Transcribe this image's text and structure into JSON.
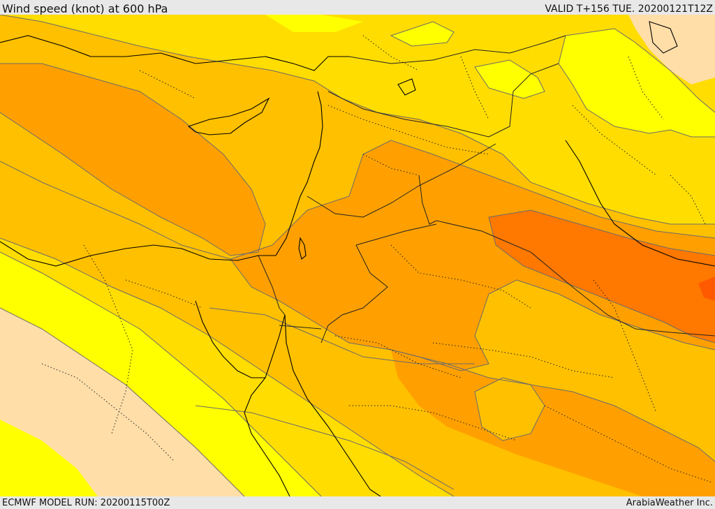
{
  "header": {
    "title": "Wind speed (knot) at 600 hPa",
    "valid": "VALID T+156 TUE. 20200121T12Z"
  },
  "footer": {
    "model_run": "ECMWF MODEL RUN: 20200115T00Z",
    "provider": "ArabiaWeather Inc."
  },
  "map": {
    "palette": {
      "band_lightest": "#ffdea8",
      "band_yellow": "#ffff00",
      "band_gold": "#ffdd00",
      "band_amber": "#ffc000",
      "band_orange": "#ffa000",
      "band_dark_orange": "#ff7800",
      "band_red_orange": "#ff5a00",
      "contour_line": "#6b6b6b",
      "coast_line": "#000000",
      "border_line": "#222222"
    }
  }
}
